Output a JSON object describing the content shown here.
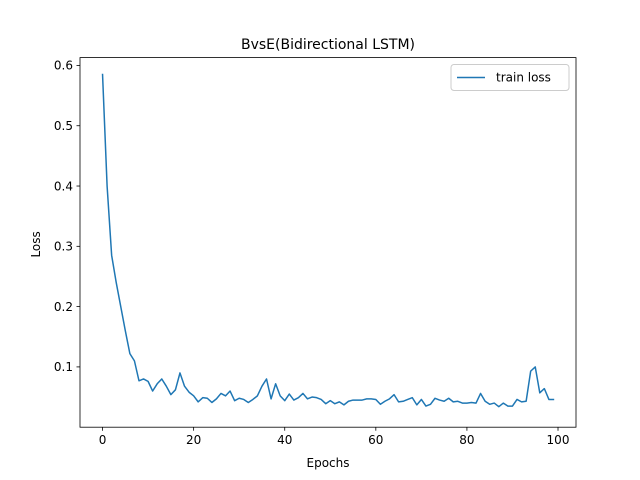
{
  "chart_data": {
    "type": "line",
    "title": "BvsE(Bidirectional LSTM)",
    "xlabel": "Epochs",
    "ylabel": "Loss",
    "xlim": [
      -4.95,
      103.95
    ],
    "ylim": [
      0.0,
      0.613
    ],
    "xticks": [
      0,
      20,
      40,
      60,
      80,
      100
    ],
    "yticks": [
      0.1,
      0.2,
      0.3,
      0.4,
      0.5,
      0.6
    ],
    "grid": false,
    "legend_position": "top-right",
    "series": [
      {
        "name": "train loss",
        "color": "#1f77b4",
        "x": [
          0,
          1,
          2,
          3,
          4,
          5,
          6,
          7,
          8,
          9,
          10,
          11,
          12,
          13,
          14,
          15,
          16,
          17,
          18,
          19,
          20,
          21,
          22,
          23,
          24,
          25,
          26,
          27,
          28,
          29,
          30,
          31,
          32,
          33,
          34,
          35,
          36,
          37,
          38,
          39,
          40,
          41,
          42,
          43,
          44,
          45,
          46,
          47,
          48,
          49,
          50,
          51,
          52,
          53,
          54,
          55,
          56,
          57,
          58,
          59,
          60,
          61,
          62,
          63,
          64,
          65,
          66,
          67,
          68,
          69,
          70,
          71,
          72,
          73,
          74,
          75,
          76,
          77,
          78,
          79,
          80,
          81,
          82,
          83,
          84,
          85,
          86,
          87,
          88,
          89,
          90,
          91,
          92,
          93,
          94,
          95,
          96,
          97,
          98,
          99
        ],
        "values": [
          0.585,
          0.4,
          0.285,
          0.24,
          0.2,
          0.16,
          0.122,
          0.11,
          0.077,
          0.08,
          0.076,
          0.06,
          0.072,
          0.08,
          0.068,
          0.054,
          0.062,
          0.09,
          0.068,
          0.058,
          0.052,
          0.042,
          0.049,
          0.048,
          0.041,
          0.047,
          0.056,
          0.052,
          0.06,
          0.044,
          0.048,
          0.046,
          0.041,
          0.046,
          0.052,
          0.068,
          0.08,
          0.047,
          0.072,
          0.052,
          0.044,
          0.055,
          0.045,
          0.049,
          0.056,
          0.047,
          0.05,
          0.049,
          0.046,
          0.039,
          0.044,
          0.039,
          0.042,
          0.037,
          0.043,
          0.045,
          0.045,
          0.045,
          0.047,
          0.047,
          0.046,
          0.038,
          0.043,
          0.047,
          0.054,
          0.042,
          0.043,
          0.046,
          0.049,
          0.037,
          0.046,
          0.035,
          0.038,
          0.048,
          0.045,
          0.043,
          0.048,
          0.042,
          0.043,
          0.04,
          0.04,
          0.041,
          0.04,
          0.056,
          0.043,
          0.038,
          0.04,
          0.034,
          0.04,
          0.035,
          0.035,
          0.046,
          0.042,
          0.043,
          0.093,
          0.1,
          0.057,
          0.064,
          0.046,
          0.046
        ]
      }
    ]
  }
}
